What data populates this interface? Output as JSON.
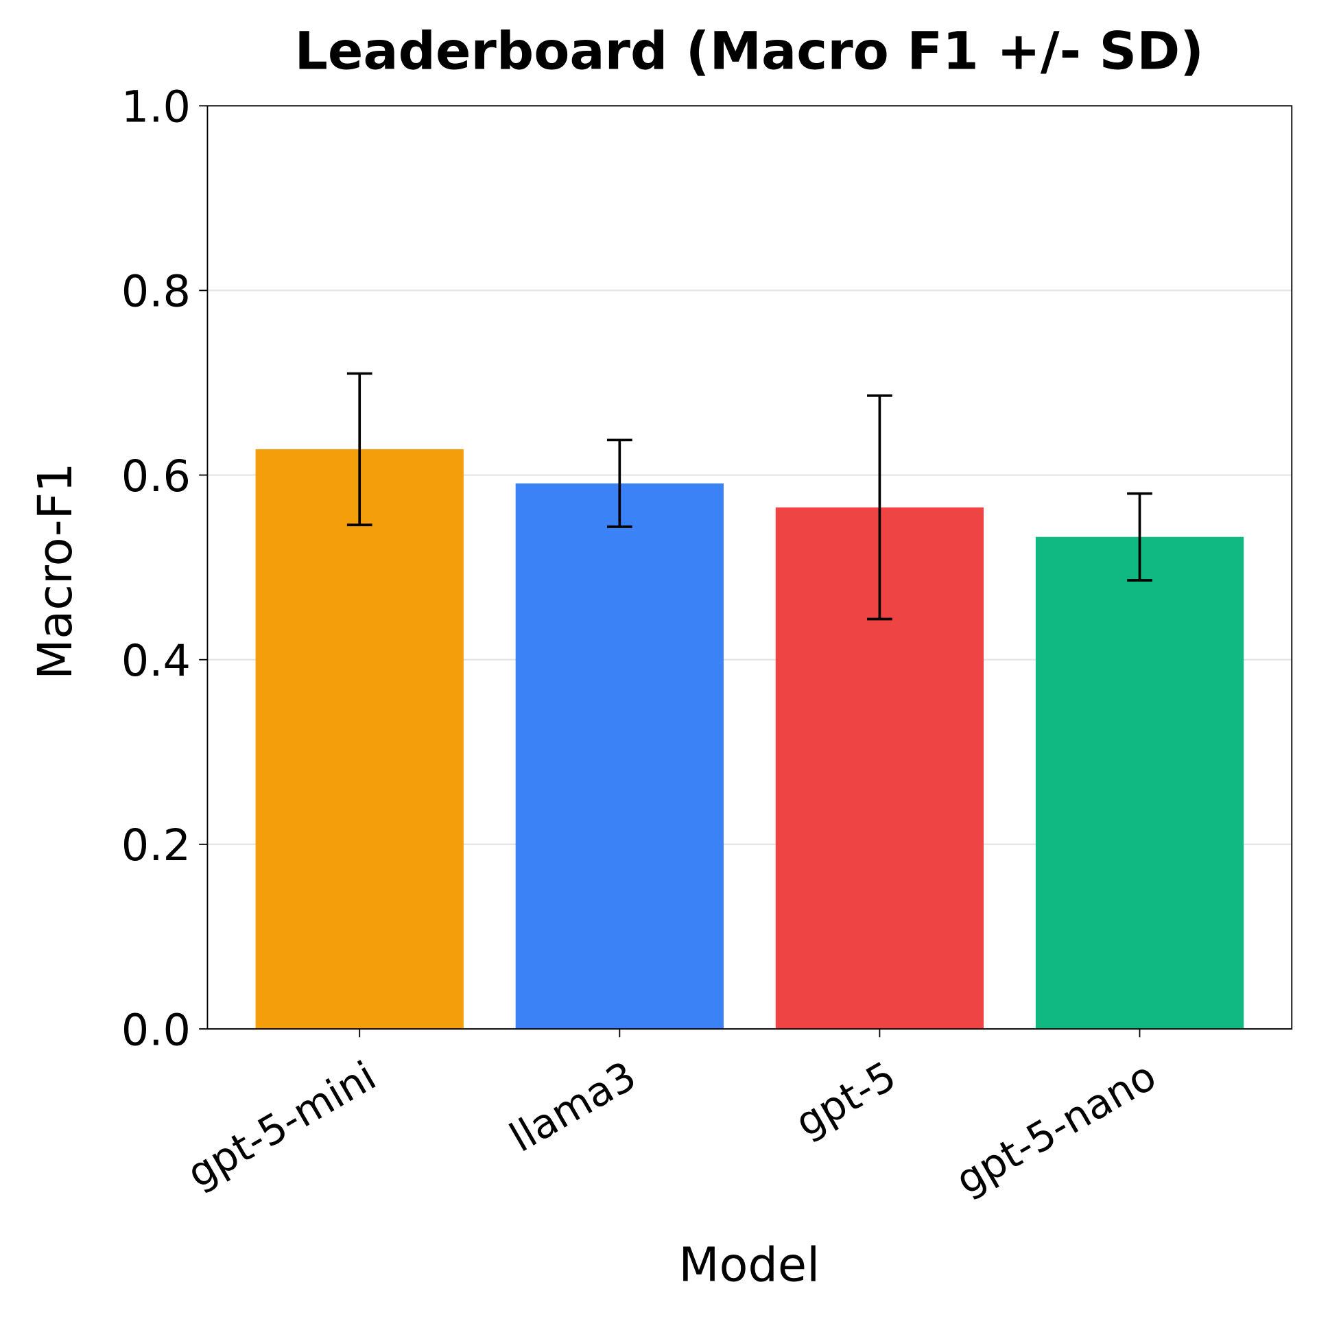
{
  "chart_data": {
    "type": "bar",
    "title": "Leaderboard (Macro F1 +/- SD)",
    "xlabel": "Model",
    "ylabel": "Macro-F1",
    "categories": [
      "gpt-5-mini",
      "llama3",
      "gpt-5",
      "gpt-5-nano"
    ],
    "values": [
      0.628,
      0.591,
      0.565,
      0.533
    ],
    "errors": [
      0.082,
      0.047,
      0.121,
      0.047
    ],
    "colors": [
      "#f59e0b",
      "#3b82f6",
      "#ef4444",
      "#10b981"
    ],
    "ylim": [
      0,
      1.0
    ],
    "yticks": [
      "0.0",
      "0.2",
      "0.4",
      "0.6",
      "0.8",
      "1.0"
    ],
    "grid": "y",
    "legend": "none"
  }
}
